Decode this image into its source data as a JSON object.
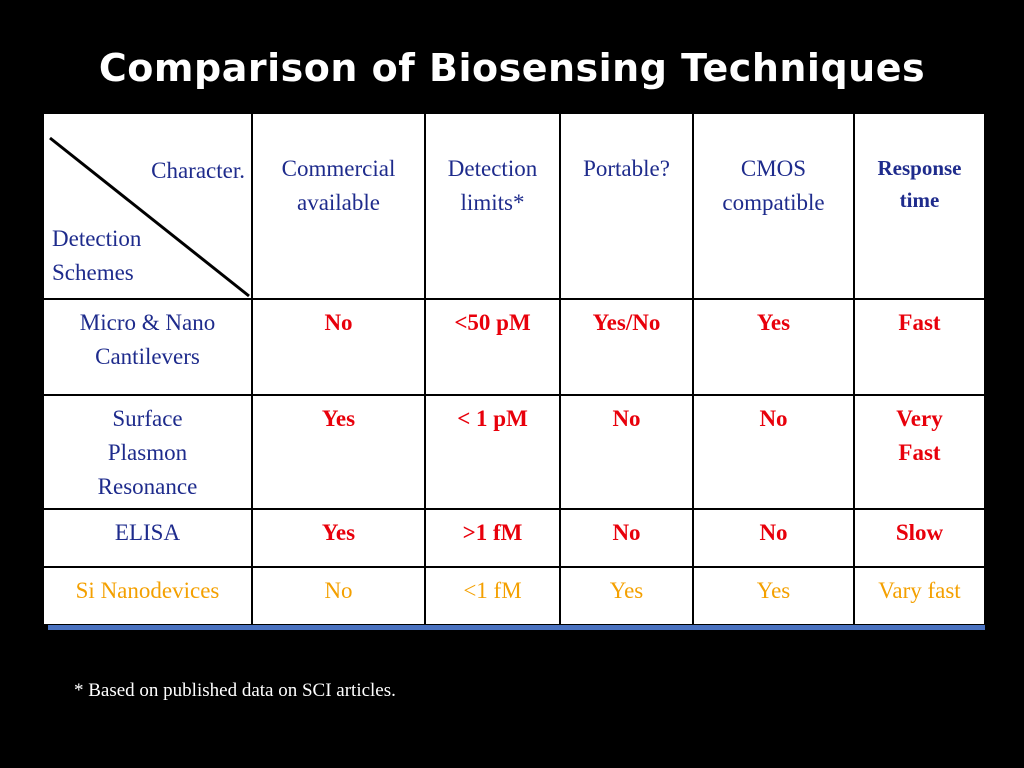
{
  "title": "Comparison of Biosensing Techniques",
  "table": {
    "corner": {
      "top_label": "Character.",
      "bottom_label_line1": "Detection",
      "bottom_label_line2": "Schemes"
    },
    "headers": [
      {
        "line1": "Commercial",
        "line2": "available"
      },
      {
        "line1": "Detection",
        "line2": "limits*"
      },
      {
        "line1": "Portable?",
        "line2": ""
      },
      {
        "line1": "CMOS",
        "line2": "compatible"
      },
      {
        "line1": "Response",
        "line2": "time"
      }
    ],
    "rows": [
      {
        "label_lines": [
          "Micro & Nano",
          "Cantilevers"
        ],
        "cells": [
          "No",
          "<50 pM",
          "Yes/No",
          "Yes",
          "Fast"
        ]
      },
      {
        "label_lines": [
          "Surface",
          "Plasmon",
          "Resonance"
        ],
        "cells": [
          "Yes",
          "< 1 pM",
          "No",
          "No",
          "Very Fast"
        ]
      },
      {
        "label_lines": [
          "ELISA"
        ],
        "cells": [
          "Yes",
          ">1 fM",
          "No",
          "No",
          "Slow"
        ]
      },
      {
        "label_lines": [
          "Si Nanodevices"
        ],
        "cells": [
          "No",
          "<1 fM",
          "Yes",
          "Yes",
          "Vary fast"
        ]
      }
    ]
  },
  "colors": {
    "header_text": "#1e2b8c",
    "value_red": "#e8000b",
    "highlight_orange": "#f4a000",
    "underline_blue": "#4a72c0"
  },
  "footnote": "* Based on published data on SCI articles."
}
